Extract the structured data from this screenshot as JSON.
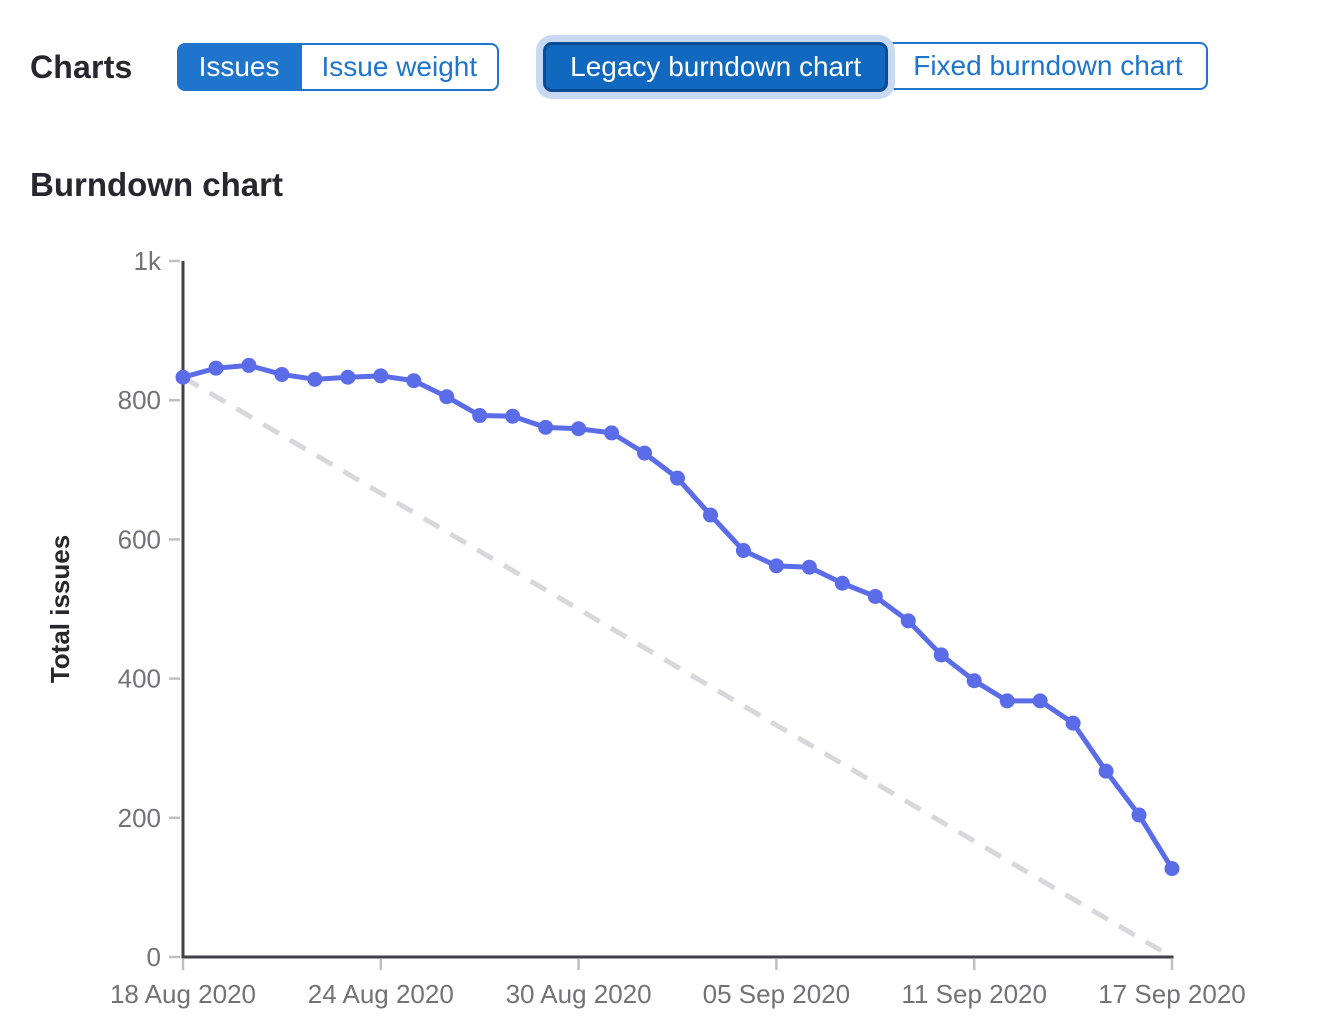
{
  "header": {
    "charts_label": "Charts",
    "metric_toggle": {
      "options": [
        {
          "label": "Issues",
          "selected": true
        },
        {
          "label": "Issue weight",
          "selected": false
        }
      ]
    },
    "chart_type_toggle": {
      "options": [
        {
          "label": "Legacy burndown chart",
          "selected": true,
          "focused": true
        },
        {
          "label": "Fixed burndown chart",
          "selected": false
        }
      ]
    }
  },
  "section_title": "Burndown chart",
  "colors": {
    "accent_blue": "#1f75cb",
    "selected_button_bg": "#1068bf",
    "selected_button_border": "#0b4d93",
    "focus_halo": "#c8d9f3",
    "series_line": "#5b6ce8",
    "guideline": "#d8d8dc",
    "axis": "#404045",
    "tick_mark": "#bfbfc4",
    "tick_text": "#737278",
    "heading_text": "#28272d"
  },
  "chart_data": {
    "type": "line",
    "title": "Burndown chart",
    "xlabel": "",
    "ylabel": "Total issues",
    "ylim": [
      0,
      1000
    ],
    "grid": false,
    "legend_position": "none",
    "y_ticks": [
      {
        "value": 0,
        "label": "0"
      },
      {
        "value": 200,
        "label": "200"
      },
      {
        "value": 400,
        "label": "400"
      },
      {
        "value": 600,
        "label": "600"
      },
      {
        "value": 800,
        "label": "800"
      },
      {
        "value": 1000,
        "label": "1k"
      }
    ],
    "x_ticks": [
      {
        "day": 0,
        "label": "18 Aug 2020"
      },
      {
        "day": 6,
        "label": "24 Aug 2020"
      },
      {
        "day": 12,
        "label": "30 Aug 2020"
      },
      {
        "day": 18,
        "label": "05 Sep 2020"
      },
      {
        "day": 24,
        "label": "11 Sep 2020"
      },
      {
        "day": 30,
        "label": "17 Sep 2020"
      }
    ],
    "x": [
      "18 Aug 2020",
      "19 Aug 2020",
      "20 Aug 2020",
      "21 Aug 2020",
      "22 Aug 2020",
      "23 Aug 2020",
      "24 Aug 2020",
      "25 Aug 2020",
      "26 Aug 2020",
      "27 Aug 2020",
      "28 Aug 2020",
      "29 Aug 2020",
      "30 Aug 2020",
      "31 Aug 2020",
      "01 Sep 2020",
      "02 Sep 2020",
      "03 Sep 2020",
      "04 Sep 2020",
      "05 Sep 2020",
      "06 Sep 2020",
      "07 Sep 2020",
      "08 Sep 2020",
      "09 Sep 2020",
      "10 Sep 2020",
      "11 Sep 2020",
      "12 Sep 2020",
      "13 Sep 2020",
      "14 Sep 2020",
      "15 Sep 2020",
      "16 Sep 2020",
      "17 Sep 2020"
    ],
    "series": [
      {
        "name": "Total issues",
        "style": "solid-with-markers",
        "color": "#5b6ce8",
        "values": [
          833,
          846,
          850,
          837,
          830,
          833,
          835,
          828,
          805,
          778,
          777,
          761,
          759,
          753,
          724,
          688,
          635,
          584,
          562,
          560,
          537,
          518,
          483,
          434,
          397,
          368,
          368,
          336,
          267,
          204,
          127
        ]
      },
      {
        "name": "Ideal burndown guideline",
        "style": "dashed",
        "color": "#d8d8dc",
        "points": [
          {
            "day": 0,
            "value": 833
          },
          {
            "day": 30,
            "value": 0
          }
        ]
      }
    ]
  }
}
